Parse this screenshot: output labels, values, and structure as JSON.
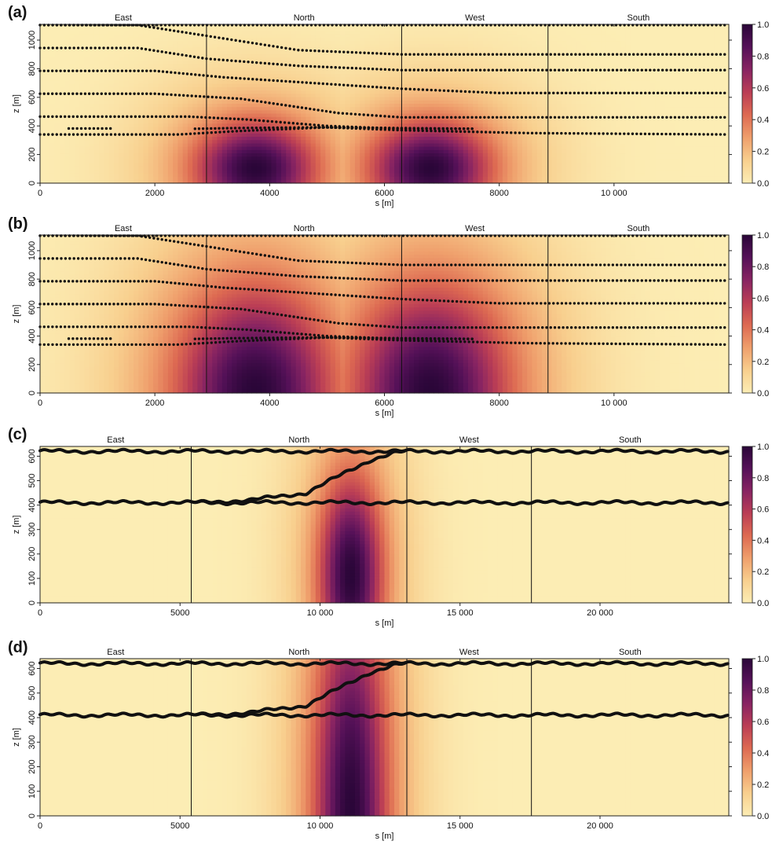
{
  "panel_letters": [
    "(a)",
    "(b)",
    "(c)",
    "(d)"
  ],
  "colorbar": {
    "colormap": "inferno-like light-to-dark",
    "ticks": [
      "0.0",
      "0.2",
      "0.4",
      "0.6",
      "0.8",
      "1.0"
    ],
    "stops": [
      "#fcedb4",
      "#f8cf8e",
      "#ef9f6c",
      "#dd6a52",
      "#bb3e55",
      "#882462",
      "#551158",
      "#2a0638"
    ]
  },
  "chart_data": [
    {
      "panel": "(a)",
      "type": "heatmap",
      "xlabel": "s [m]",
      "ylabel": "z [m]",
      "xlim": [
        0,
        12000
      ],
      "ylim": [
        0,
        1110
      ],
      "xticks": [
        0,
        2000,
        4000,
        6000,
        8000,
        10000
      ],
      "xtick_labels": [
        "0",
        "2000",
        "4000",
        "6000",
        "8000",
        "10 000"
      ],
      "yticks": [
        0,
        200,
        400,
        600,
        800,
        1000
      ],
      "ytick_labels": [
        "0",
        "200",
        "400",
        "600",
        "800",
        "1000"
      ],
      "sections": [
        {
          "label": "East",
          "start": 0,
          "end": 2900
        },
        {
          "label": "North",
          "start": 2900,
          "end": 6300
        },
        {
          "label": "West",
          "start": 6300,
          "end": 8850
        },
        {
          "label": "South",
          "start": 8850,
          "end": 12000
        }
      ],
      "boundaries": [
        2900,
        6300,
        8850
      ],
      "colorbar_range": [
        0,
        1
      ],
      "field": {
        "sources": [
          {
            "s": 3750,
            "z": 100,
            "sx": 800,
            "sz": 250
          },
          {
            "s": 6800,
            "z": 100,
            "sx": 800,
            "sz": 250
          }
        ],
        "halo": 0.4
      },
      "tracks": [
        {
          "points": [
            [
              0,
              1105
            ],
            [
              12000,
              1105
            ]
          ]
        },
        {
          "points": [
            [
              0,
              1105
            ],
            [
              1700,
              1105
            ],
            [
              2900,
              1030
            ],
            [
              4500,
              930
            ],
            [
              6300,
              900
            ],
            [
              12000,
              900
            ]
          ]
        },
        {
          "points": [
            [
              0,
              945
            ],
            [
              1700,
              945
            ],
            [
              2900,
              870
            ],
            [
              4500,
              820
            ],
            [
              6300,
              790
            ],
            [
              12000,
              790
            ]
          ]
        },
        {
          "points": [
            [
              0,
              785
            ],
            [
              2000,
              785
            ],
            [
              3200,
              740
            ],
            [
              6300,
              660
            ],
            [
              8000,
              630
            ],
            [
              12000,
              630
            ]
          ]
        },
        {
          "points": [
            [
              0,
              625
            ],
            [
              2000,
              625
            ],
            [
              3500,
              590
            ],
            [
              5200,
              490
            ],
            [
              6300,
              460
            ],
            [
              12000,
              460
            ]
          ]
        },
        {
          "points": [
            [
              0,
              465
            ],
            [
              2600,
              465
            ],
            [
              3600,
              445
            ],
            [
              5000,
              400
            ],
            [
              6300,
              380
            ],
            [
              7600,
              380
            ]
          ]
        },
        {
          "points": [
            [
              0,
              340
            ],
            [
              2400,
              340
            ],
            [
              3500,
              365
            ],
            [
              5000,
              390
            ],
            [
              6300,
              370
            ],
            [
              8500,
              350
            ],
            [
              12000,
              340
            ]
          ]
        },
        {
          "points": [
            [
              500,
              382
            ],
            [
              1300,
              382
            ]
          ]
        },
        {
          "points": [
            [
              2700,
              380
            ],
            [
              3400,
              385
            ],
            [
              4800,
              390
            ],
            [
              6300,
              385
            ],
            [
              7600,
              380
            ]
          ]
        }
      ]
    },
    {
      "panel": "(b)",
      "type": "heatmap",
      "xlabel": "s [m]",
      "ylabel": "z [m]",
      "xlim": [
        0,
        12000
      ],
      "ylim": [
        0,
        1110
      ],
      "xticks": [
        0,
        2000,
        4000,
        6000,
        8000,
        10000
      ],
      "xtick_labels": [
        "0",
        "2000",
        "4000",
        "6000",
        "8000",
        "10 000"
      ],
      "yticks": [
        0,
        200,
        400,
        600,
        800,
        1000
      ],
      "ytick_labels": [
        "0",
        "200",
        "400",
        "600",
        "800",
        "1000"
      ],
      "sections": [
        {
          "label": "East",
          "start": 0,
          "end": 2900
        },
        {
          "label": "North",
          "start": 2900,
          "end": 6300
        },
        {
          "label": "West",
          "start": 6300,
          "end": 8850
        },
        {
          "label": "South",
          "start": 8850,
          "end": 12000
        }
      ],
      "boundaries": [
        2900,
        6300,
        8850
      ],
      "colorbar_range": [
        0,
        1
      ],
      "field": {
        "sources": [
          {
            "s": 3750,
            "z": 0,
            "sx": 900,
            "sz": 480
          },
          {
            "s": 6800,
            "z": 0,
            "sx": 900,
            "sz": 480
          }
        ],
        "halo": 0.55
      },
      "tracks": [
        {
          "points": [
            [
              0,
              1105
            ],
            [
              12000,
              1105
            ]
          ]
        },
        {
          "points": [
            [
              0,
              1105
            ],
            [
              1700,
              1105
            ],
            [
              2900,
              1030
            ],
            [
              4500,
              930
            ],
            [
              6300,
              900
            ],
            [
              12000,
              900
            ]
          ]
        },
        {
          "points": [
            [
              0,
              945
            ],
            [
              1700,
              945
            ],
            [
              2900,
              870
            ],
            [
              4500,
              820
            ],
            [
              6300,
              790
            ],
            [
              12000,
              790
            ]
          ]
        },
        {
          "points": [
            [
              0,
              785
            ],
            [
              2000,
              785
            ],
            [
              3200,
              740
            ],
            [
              6300,
              660
            ],
            [
              8000,
              630
            ],
            [
              12000,
              630
            ]
          ]
        },
        {
          "points": [
            [
              0,
              625
            ],
            [
              2000,
              625
            ],
            [
              3500,
              590
            ],
            [
              5200,
              490
            ],
            [
              6300,
              460
            ],
            [
              12000,
              460
            ]
          ]
        },
        {
          "points": [
            [
              0,
              465
            ],
            [
              2600,
              465
            ],
            [
              3600,
              445
            ],
            [
              5000,
              400
            ],
            [
              6300,
              380
            ],
            [
              7600,
              380
            ]
          ]
        },
        {
          "points": [
            [
              0,
              340
            ],
            [
              2400,
              340
            ],
            [
              3500,
              365
            ],
            [
              5000,
              390
            ],
            [
              6300,
              370
            ],
            [
              8500,
              350
            ],
            [
              12000,
              340
            ]
          ]
        },
        {
          "points": [
            [
              500,
              382
            ],
            [
              1300,
              382
            ]
          ]
        },
        {
          "points": [
            [
              2700,
              380
            ],
            [
              3400,
              385
            ],
            [
              4800,
              390
            ],
            [
              6300,
              385
            ],
            [
              7600,
              380
            ]
          ]
        }
      ]
    },
    {
      "panel": "(c)",
      "type": "heatmap",
      "xlabel": "s [m]",
      "ylabel": "z [m]",
      "xlim": [
        0,
        24600
      ],
      "ylim": [
        0,
        640
      ],
      "xticks": [
        0,
        5000,
        10000,
        15000,
        20000
      ],
      "xtick_labels": [
        "0",
        "5000",
        "10 000",
        "15 000",
        "20 000"
      ],
      "yticks": [
        0,
        100,
        200,
        300,
        400,
        500,
        600
      ],
      "ytick_labels": [
        "0",
        "100",
        "200",
        "300",
        "400",
        "500",
        "600"
      ],
      "sections": [
        {
          "label": "East",
          "start": 0,
          "end": 5400
        },
        {
          "label": "North",
          "start": 5400,
          "end": 13100
        },
        {
          "label": "West",
          "start": 13100,
          "end": 17550
        },
        {
          "label": "South",
          "start": 17550,
          "end": 24600
        }
      ],
      "boundaries": [
        5400,
        13100,
        17550
      ],
      "colorbar_range": [
        0,
        1
      ],
      "field": {
        "sources": [
          {
            "s": 11100,
            "z": 110,
            "sx": 900,
            "sz": 320
          }
        ],
        "halo": 0.35
      },
      "tracks": [
        {
          "points": [
            [
              0,
              620
            ],
            [
              24600,
              620
            ]
          ]
        },
        {
          "points": [
            [
              0,
              410
            ],
            [
              24600,
              410
            ]
          ]
        },
        {
          "points": [
            [
              5400,
              410
            ],
            [
              7500,
              420
            ],
            [
              9500,
              450
            ],
            [
              10700,
              520
            ],
            [
              11800,
              585
            ],
            [
              12600,
              612
            ],
            [
              13100,
              620
            ]
          ]
        }
      ]
    },
    {
      "panel": "(d)",
      "type": "heatmap",
      "xlabel": "s [m]",
      "ylabel": "z [m]",
      "xlim": [
        0,
        24600
      ],
      "ylim": [
        0,
        640
      ],
      "xticks": [
        0,
        5000,
        10000,
        15000,
        20000
      ],
      "xtick_labels": [
        "0",
        "5000",
        "10 000",
        "15 000",
        "20 000"
      ],
      "yticks": [
        0,
        100,
        200,
        300,
        400,
        500,
        600
      ],
      "ytick_labels": [
        "0",
        "100",
        "200",
        "300",
        "400",
        "500",
        "600"
      ],
      "sections": [
        {
          "label": "East",
          "start": 0,
          "end": 5400
        },
        {
          "label": "North",
          "start": 5400,
          "end": 13100
        },
        {
          "label": "West",
          "start": 13100,
          "end": 17550
        },
        {
          "label": "South",
          "start": 17550,
          "end": 24600
        }
      ],
      "boundaries": [
        5400,
        13100,
        17550
      ],
      "colorbar_range": [
        0,
        1
      ],
      "field": {
        "sources": [
          {
            "s": 11100,
            "z": 0,
            "sx": 950,
            "sz": 650
          }
        ],
        "halo": 0.45
      },
      "tracks": [
        {
          "points": [
            [
              0,
              620
            ],
            [
              24600,
              620
            ]
          ]
        },
        {
          "points": [
            [
              0,
              410
            ],
            [
              24600,
              410
            ]
          ]
        },
        {
          "points": [
            [
              5400,
              410
            ],
            [
              7500,
              420
            ],
            [
              9500,
              450
            ],
            [
              10700,
              520
            ],
            [
              11800,
              585
            ],
            [
              12600,
              612
            ],
            [
              13100,
              620
            ]
          ]
        }
      ]
    }
  ]
}
